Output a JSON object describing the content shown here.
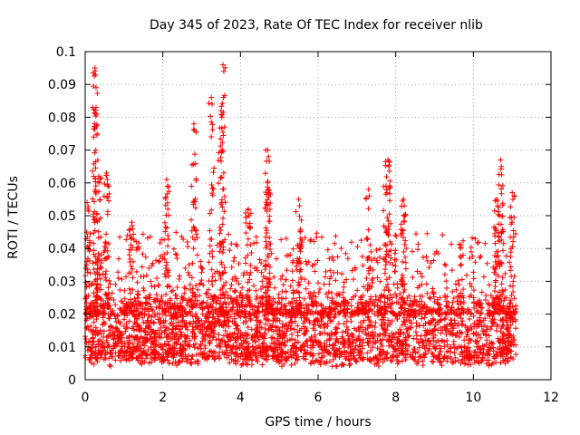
{
  "chart_data": {
    "type": "scatter",
    "title": "Day 345 of 2023, Rate Of TEC Index for receiver nlib",
    "xlabel": "GPS time / hours",
    "ylabel": "ROTI / TECUs",
    "xlim": [
      0,
      12
    ],
    "ylim": [
      0,
      0.1
    ],
    "xticks": [
      0,
      2,
      4,
      6,
      8,
      10,
      12
    ],
    "xtick_labels": [
      "0",
      "2",
      "4",
      "6",
      "8",
      "10",
      "12"
    ],
    "yticks": [
      0,
      0.01,
      0.02,
      0.03,
      0.04,
      0.05,
      0.06,
      0.07,
      0.08,
      0.09,
      0.1
    ],
    "ytick_labels": [
      "0",
      "0.01",
      "0.02",
      "0.03",
      "0.04",
      "0.05",
      "0.06",
      "0.07",
      "0.08",
      "0.09",
      "0.1"
    ],
    "grid": true,
    "marker": "+",
    "marker_color": "#ff0000",
    "series": [
      {
        "name": "ROTI",
        "x_range": [
          0.0,
          11.1
        ],
        "baseline": {
          "typical_min": 0.006,
          "typical_max": 0.025
        },
        "peaks": [
          {
            "x": 0.05,
            "y": 0.054
          },
          {
            "x": 0.25,
            "y": 0.095
          },
          {
            "x": 0.28,
            "y": 0.083
          },
          {
            "x": 0.35,
            "y": 0.062
          },
          {
            "x": 0.55,
            "y": 0.063
          },
          {
            "x": 1.2,
            "y": 0.048
          },
          {
            "x": 2.1,
            "y": 0.061
          },
          {
            "x": 2.8,
            "y": 0.078
          },
          {
            "x": 3.25,
            "y": 0.086
          },
          {
            "x": 3.55,
            "y": 0.096
          },
          {
            "x": 3.5,
            "y": 0.082
          },
          {
            "x": 4.2,
            "y": 0.052
          },
          {
            "x": 4.7,
            "y": 0.07
          },
          {
            "x": 4.7,
            "y": 0.06
          },
          {
            "x": 5.5,
            "y": 0.055
          },
          {
            "x": 7.3,
            "y": 0.058
          },
          {
            "x": 7.8,
            "y": 0.067
          },
          {
            "x": 7.75,
            "y": 0.059
          },
          {
            "x": 8.2,
            "y": 0.055
          },
          {
            "x": 10.7,
            "y": 0.067
          },
          {
            "x": 10.6,
            "y": 0.055
          },
          {
            "x": 11.0,
            "y": 0.057
          }
        ]
      }
    ]
  }
}
